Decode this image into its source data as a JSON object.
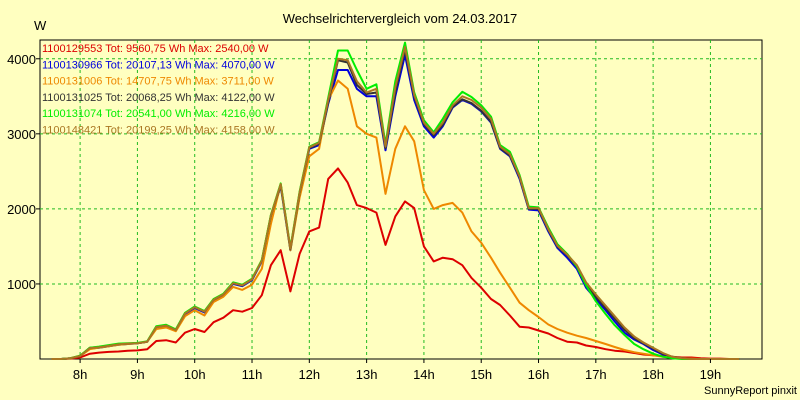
{
  "chart_data": {
    "type": "line",
    "title": "Wechselrichtervergleich vom 24.03.2017",
    "ylabel": "W",
    "xlabel": "",
    "credit": "SunnyReport pinxit",
    "xlim": [
      7.3,
      19.9
    ],
    "ylim": [
      0,
      4250
    ],
    "x_ticks": [
      {
        "value": 8,
        "label": "8h"
      },
      {
        "value": 9,
        "label": "9h"
      },
      {
        "value": 10,
        "label": "10h"
      },
      {
        "value": 11,
        "label": "11h"
      },
      {
        "value": 12,
        "label": "12h"
      },
      {
        "value": 13,
        "label": "13h"
      },
      {
        "value": 14,
        "label": "14h"
      },
      {
        "value": 15,
        "label": "15h"
      },
      {
        "value": 16,
        "label": "16h"
      },
      {
        "value": 17,
        "label": "17h"
      },
      {
        "value": 18,
        "label": "18h"
      },
      {
        "value": 19,
        "label": "19h"
      }
    ],
    "y_ticks": [
      {
        "value": 1000,
        "label": "1000"
      },
      {
        "value": 2000,
        "label": "2000"
      },
      {
        "value": 3000,
        "label": "3000"
      },
      {
        "value": 4000,
        "label": "4000"
      }
    ],
    "grid": true,
    "legend_position": "top-left",
    "x": [
      7.5,
      7.67,
      7.83,
      8.0,
      8.17,
      8.33,
      8.5,
      8.67,
      8.83,
      9.0,
      9.17,
      9.33,
      9.5,
      9.67,
      9.83,
      10.0,
      10.17,
      10.33,
      10.5,
      10.67,
      10.83,
      11.0,
      11.17,
      11.33,
      11.5,
      11.67,
      11.83,
      12.0,
      12.17,
      12.33,
      12.5,
      12.67,
      12.83,
      13.0,
      13.17,
      13.33,
      13.5,
      13.67,
      13.83,
      14.0,
      14.17,
      14.33,
      14.5,
      14.67,
      14.83,
      15.0,
      15.17,
      15.33,
      15.5,
      15.67,
      15.83,
      16.0,
      16.17,
      16.33,
      16.5,
      16.67,
      16.83,
      17.0,
      17.17,
      17.33,
      17.5,
      17.67,
      17.83,
      18.0,
      18.17,
      18.33,
      18.5,
      18.67,
      18.83,
      19.0,
      19.17,
      19.33,
      19.5
    ],
    "series": [
      {
        "name": "1100129553",
        "legend": "1100129553 Tot: 9560,75 Wh Max: 2540,00 W",
        "color": "#dd0000",
        "values": [
          0,
          0,
          5,
          20,
          70,
          85,
          95,
          100,
          110,
          115,
          130,
          240,
          250,
          220,
          350,
          400,
          360,
          490,
          550,
          650,
          630,
          680,
          850,
          1250,
          1450,
          900,
          1400,
          1700,
          1750,
          2400,
          2540,
          2350,
          2050,
          2010,
          1950,
          1520,
          1900,
          2100,
          2010,
          1500,
          1300,
          1350,
          1330,
          1250,
          1080,
          950,
          800,
          720,
          580,
          430,
          420,
          380,
          340,
          280,
          230,
          220,
          180,
          160,
          130,
          110,
          100,
          80,
          60,
          50,
          40,
          30,
          20,
          20,
          10,
          5,
          5,
          0,
          0
        ]
      },
      {
        "name": "1100130966",
        "legend": "1100130966 Tot: 20107,13 Wh Max: 4070,00 W",
        "color": "#0000dd",
        "values": [
          0,
          0,
          10,
          40,
          140,
          150,
          170,
          190,
          200,
          210,
          230,
          420,
          440,
          380,
          600,
          680,
          620,
          780,
          850,
          1000,
          970,
          1050,
          1300,
          1900,
          2300,
          1450,
          2200,
          2800,
          2850,
          3400,
          3850,
          3850,
          3600,
          3500,
          3500,
          2780,
          3500,
          4050,
          3450,
          3100,
          2950,
          3100,
          3350,
          3450,
          3400,
          3300,
          3150,
          2800,
          2700,
          2400,
          1990,
          1980,
          1700,
          1480,
          1350,
          1200,
          950,
          800,
          650,
          500,
          350,
          260,
          200,
          120,
          60,
          30,
          10,
          0,
          0,
          0,
          0,
          0,
          0
        ]
      },
      {
        "name": "1100131006",
        "legend": "1100131006 Tot: 14707,75 Wh Max: 3711,00 W",
        "color": "#ee8800",
        "values": [
          0,
          0,
          10,
          40,
          130,
          150,
          170,
          190,
          200,
          210,
          230,
          400,
          420,
          370,
          570,
          650,
          580,
          760,
          830,
          960,
          920,
          990,
          1200,
          1800,
          2330,
          1450,
          2150,
          2700,
          2800,
          3450,
          3711,
          3600,
          3100,
          3000,
          2950,
          2200,
          2800,
          3100,
          2900,
          2250,
          2000,
          2050,
          2080,
          1950,
          1700,
          1550,
          1350,
          1150,
          950,
          750,
          650,
          560,
          460,
          400,
          350,
          310,
          280,
          240,
          200,
          160,
          120,
          90,
          70,
          50,
          30,
          20,
          10,
          5,
          0,
          0,
          0,
          0,
          0
        ]
      },
      {
        "name": "1100131025",
        "legend": "1100131025 Tot: 20068,25 Wh Max: 4122,00 W",
        "color": "#333333",
        "values": [
          0,
          0,
          10,
          40,
          150,
          160,
          180,
          200,
          205,
          210,
          230,
          430,
          450,
          390,
          610,
          690,
          630,
          790,
          860,
          1010,
          980,
          1060,
          1310,
          1910,
          2320,
          1460,
          2210,
          2810,
          2870,
          3420,
          3980,
          3950,
          3650,
          3530,
          3550,
          2810,
          3560,
          4122,
          3500,
          3130,
          2980,
          3120,
          3360,
          3460,
          3410,
          3310,
          3160,
          2810,
          2710,
          2420,
          2000,
          2000,
          1720,
          1500,
          1380,
          1230,
          980,
          830,
          680,
          540,
          390,
          280,
          210,
          140,
          70,
          30,
          10,
          0,
          0,
          0,
          0,
          0,
          0
        ]
      },
      {
        "name": "1100131074",
        "legend": "1100131074 Tot: 20541,00 Wh Max: 4216,00 W",
        "color": "#00ee00",
        "values": [
          0,
          0,
          10,
          45,
          150,
          165,
          185,
          205,
          210,
          215,
          235,
          435,
          455,
          395,
          615,
          700,
          640,
          800,
          870,
          1020,
          990,
          1070,
          1320,
          1920,
          2340,
          1480,
          2230,
          2830,
          2890,
          3480,
          4110,
          4110,
          3850,
          3600,
          3660,
          2860,
          3700,
          4216,
          3550,
          3180,
          3020,
          3200,
          3420,
          3560,
          3490,
          3380,
          3230,
          2850,
          2760,
          2450,
          2030,
          2020,
          1750,
          1530,
          1400,
          1230,
          980,
          770,
          600,
          450,
          320,
          200,
          130,
          70,
          30,
          10,
          0,
          0,
          0,
          0,
          0,
          0,
          0
        ]
      },
      {
        "name": "1100148421",
        "legend": "1100148421 Tot: 20199,25 Wh Max: 4158,00 W",
        "color": "#aa7722",
        "values": [
          0,
          0,
          10,
          40,
          145,
          155,
          175,
          195,
          205,
          210,
          230,
          425,
          445,
          385,
          605,
          690,
          630,
          790,
          860,
          1010,
          980,
          1060,
          1310,
          1910,
          2330,
          1470,
          2220,
          2820,
          2880,
          3450,
          4000,
          3980,
          3700,
          3550,
          3600,
          2830,
          3620,
          4158,
          3520,
          3150,
          3000,
          3150,
          3380,
          3500,
          3450,
          3350,
          3200,
          2830,
          2730,
          2430,
          2010,
          2010,
          1730,
          1510,
          1390,
          1250,
          1020,
          860,
          710,
          570,
          420,
          300,
          220,
          150,
          80,
          30,
          10,
          0,
          0,
          0,
          0,
          0,
          0
        ]
      }
    ]
  }
}
